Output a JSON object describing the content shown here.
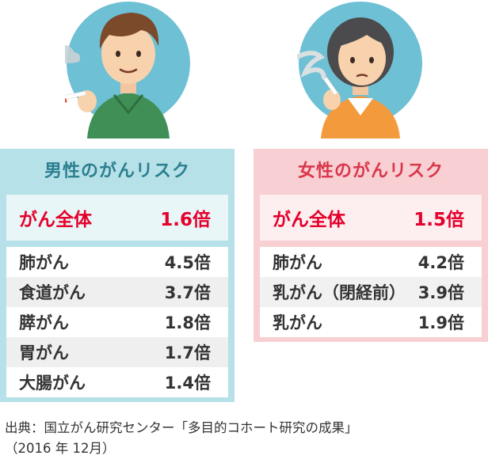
{
  "male": {
    "title": "男性のがんリスク",
    "overall": {
      "label": "がん全体",
      "value": "1.6倍"
    },
    "rows": [
      {
        "label": "肺がん",
        "value": "4.5倍"
      },
      {
        "label": "食道がん",
        "value": "3.7倍"
      },
      {
        "label": "膵がん",
        "value": "1.8倍"
      },
      {
        "label": "胃がん",
        "value": "1.7倍"
      },
      {
        "label": "大腸がん",
        "value": "1.4倍"
      }
    ]
  },
  "female": {
    "title": "女性のがんリスク",
    "overall": {
      "label": "がん全体",
      "value": "1.5倍"
    },
    "rows": [
      {
        "label": "肺がん",
        "value": "4.2倍"
      },
      {
        "label": "乳がん（閉経前）",
        "value": "3.9倍"
      },
      {
        "label": "乳がん",
        "value": "1.9倍"
      }
    ]
  },
  "source": {
    "line1": "出典：国立がん研究センター「多目的コホート研究の成果」",
    "line2": "（2016 年 12月）"
  },
  "colors": {
    "male_panel": "#b7e1e8",
    "female_panel": "#f8cfd3",
    "male_title": "#2b7f8f",
    "female_title": "#d9374a",
    "highlight_red": "#e4002b",
    "illustration_circle": "#6ec0d4"
  }
}
